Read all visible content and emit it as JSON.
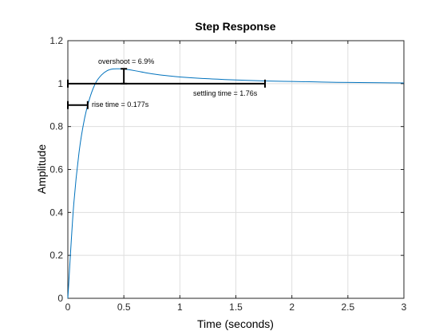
{
  "chart_data": {
    "type": "line",
    "title": "Step Response",
    "xlabel": "Time (seconds)",
    "ylabel": "Amplitude",
    "xlim": [
      0,
      3
    ],
    "ylim": [
      0,
      1.2
    ],
    "x_ticks": [
      0,
      0.5,
      1,
      1.5,
      2,
      2.5,
      3
    ],
    "x_tick_labels": [
      "0",
      "0.5",
      "1",
      "1.5",
      "2",
      "2.5",
      "3"
    ],
    "y_ticks": [
      0,
      0.2,
      0.4,
      0.6,
      0.8,
      1,
      1.2
    ],
    "y_tick_labels": [
      "0",
      "0.2",
      "0.4",
      "0.6",
      "0.8",
      "1",
      "1.2"
    ],
    "grid": true,
    "line_color": "#0072bd",
    "series": [
      {
        "x": [
          0,
          0.05,
          0.1,
          0.15,
          0.2,
          0.25,
          0.3,
          0.35,
          0.4,
          0.45,
          0.5,
          0.6,
          0.7,
          0.8,
          0.9,
          1.0,
          1.2,
          1.4,
          1.6,
          1.8,
          2.0,
          2.2,
          2.4,
          2.6,
          2.8,
          3.0
        ],
        "y": [
          0,
          0.42,
          0.68,
          0.84,
          0.94,
          1.005,
          1.04,
          1.06,
          1.068,
          1.069,
          1.068,
          1.06,
          1.05,
          1.042,
          1.036,
          1.031,
          1.024,
          1.019,
          1.015,
          1.012,
          1.01,
          1.008,
          1.006,
          1.005,
          1.004,
          1.003
        ]
      }
    ],
    "annotations": {
      "overshoot": {
        "label": "overshoot = 6.9%",
        "x": 0.5,
        "y_low": 1.0,
        "y_high": 1.069
      },
      "rise_time": {
        "label": "rise time = 0.177s",
        "x_start": 0,
        "x_end": 0.177,
        "y": 0.9
      },
      "settling_time": {
        "label": "settling time = 1.76s",
        "x_start": 0,
        "x_end": 1.76,
        "y": 1.0
      }
    }
  }
}
